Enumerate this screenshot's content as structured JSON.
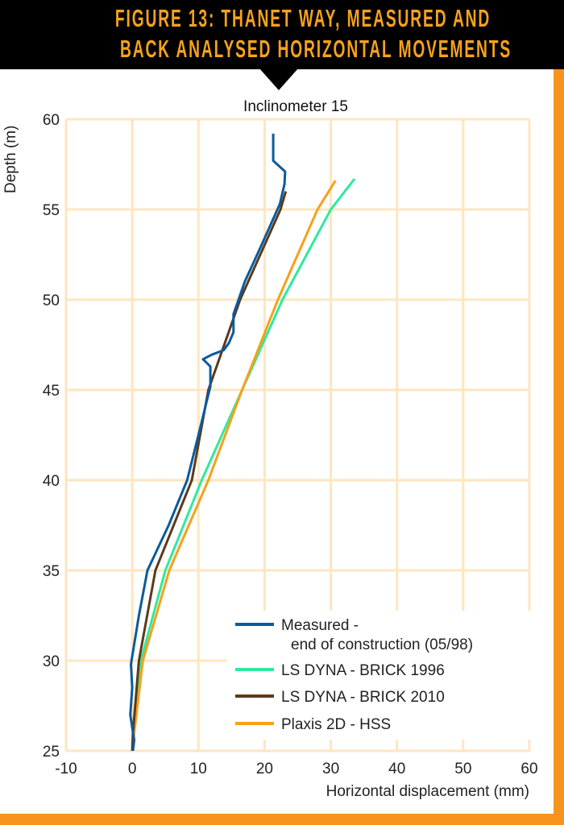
{
  "figure_title": [
    "FIGURE 13: THANET WAY, MEASURED AND",
    "BACK ANALYSED HORIZONTAL MOVEMENTS"
  ],
  "colors": {
    "accent": "#f7941d",
    "header_bg": "#000000",
    "grid": "#fde6c0"
  },
  "chart_data": {
    "type": "line",
    "title": "Inclinometer 15",
    "xlabel": "Horizontal displacement (mm)",
    "ylabel": "Depth (m)",
    "xlim": [
      -10,
      60
    ],
    "ylim": [
      25,
      60
    ],
    "xticks": [
      -10,
      0,
      10,
      20,
      30,
      40,
      50,
      60
    ],
    "yticks": [
      25,
      30,
      35,
      40,
      45,
      50,
      55,
      60
    ],
    "grid": true,
    "legend_position": "bottom-right",
    "series": [
      {
        "name": "Measured -",
        "name_line2": "end of construction (05/98)",
        "color": "#0b5a9e",
        "points": [
          [
            21.3,
            59.2
          ],
          [
            21.3,
            57.7
          ],
          [
            23.1,
            57.1
          ],
          [
            23.0,
            56.4
          ],
          [
            22.3,
            55.3
          ],
          [
            19.5,
            53.0
          ],
          [
            17.0,
            51.0
          ],
          [
            15.3,
            49.2
          ],
          [
            15.3,
            48.2
          ],
          [
            14.6,
            47.6
          ],
          [
            13.8,
            47.2
          ],
          [
            12.0,
            46.95
          ],
          [
            10.7,
            46.7
          ],
          [
            11.8,
            46.3
          ],
          [
            11.8,
            45.2
          ],
          [
            10.0,
            42.5
          ],
          [
            8.3,
            40.0
          ],
          [
            5.5,
            37.5
          ],
          [
            2.3,
            35.0
          ],
          [
            1.0,
            32.5
          ],
          [
            -0.2,
            29.8
          ],
          [
            0.0,
            28.5
          ],
          [
            -0.3,
            27.0
          ],
          [
            0.0,
            26.3
          ],
          [
            0.3,
            25.6
          ],
          [
            0.1,
            25.0
          ]
        ]
      },
      {
        "name": "LS DYNA - BRICK 1996",
        "color": "#2eea9c",
        "points": [
          [
            33.6,
            56.7
          ],
          [
            30.0,
            55.0
          ],
          [
            22.7,
            50.0
          ],
          [
            16.6,
            45.0
          ],
          [
            10.5,
            40.0
          ],
          [
            5.0,
            35.0
          ],
          [
            1.3,
            30.0
          ],
          [
            0.2,
            26.0
          ],
          [
            0.0,
            25.2
          ]
        ]
      },
      {
        "name": "LS DYNA - BRICK 2010",
        "color": "#5a3a1c",
        "points": [
          [
            23.2,
            56.0
          ],
          [
            22.4,
            55.0
          ],
          [
            16.3,
            50.0
          ],
          [
            11.5,
            45.0
          ],
          [
            9.0,
            40.0
          ],
          [
            3.5,
            35.0
          ],
          [
            1.0,
            30.0
          ],
          [
            0.1,
            26.0
          ],
          [
            0.0,
            25.0
          ]
        ]
      },
      {
        "name": "Plaxis 2D - HSS",
        "color": "#f7a01a",
        "points": [
          [
            30.7,
            56.6
          ],
          [
            28.0,
            55.0
          ],
          [
            22.0,
            50.0
          ],
          [
            16.6,
            45.0
          ],
          [
            11.5,
            40.0
          ],
          [
            5.6,
            35.0
          ],
          [
            1.6,
            30.0
          ],
          [
            0.3,
            26.0
          ],
          [
            0.1,
            25.3
          ]
        ]
      }
    ]
  }
}
